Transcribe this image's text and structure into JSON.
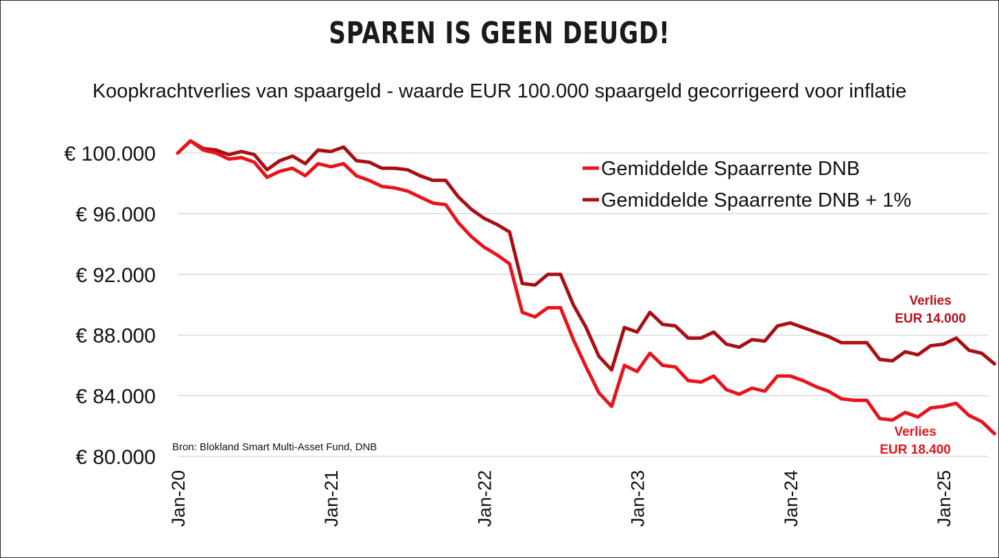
{
  "title": "SPAREN IS GEEN DEUGD!",
  "subtitle": "Koopkrachtverlies van spaargeld - waarde EUR 100.000 spaargeld gecorrigeerd voor inflatie",
  "source": "Bron: Blokland Smart Multi-Asset Fund, DNB",
  "chart_data": {
    "type": "line",
    "title": "SPAREN IS GEEN DEUGD!",
    "subtitle": "Koopkrachtverlies van spaargeld - waarde EUR 100.000 spaargeld gecorrigeerd voor inflatie",
    "xlabel": "",
    "ylabel": "",
    "ylim": [
      80000,
      100000
    ],
    "yticks": [
      80000,
      84000,
      88000,
      92000,
      96000,
      100000
    ],
    "ytick_labels": [
      "€ 80.000",
      "€ 84.000",
      "€ 88.000",
      "€ 92.000",
      "€ 96.000",
      "€ 100.000"
    ],
    "xtick_labels": [
      "Jan-20",
      "Jan-21",
      "Jan-22",
      "Jan-23",
      "Jan-24",
      "Jan-25"
    ],
    "x_start": "2020-01",
    "x_end": "2025-05",
    "grid": true,
    "legend_position": "top-right",
    "series": [
      {
        "name": "Gemiddelde Spaarrente DNB",
        "color": "#e8141b",
        "values": [
          100000,
          100800,
          100200,
          100000,
          99600,
          99700,
          99400,
          98400,
          98800,
          99000,
          98500,
          99300,
          99100,
          99300,
          98500,
          98200,
          97800,
          97700,
          97500,
          97100,
          96700,
          96600,
          95400,
          94500,
          93800,
          93300,
          92700,
          89500,
          89200,
          89800,
          89800,
          87700,
          85900,
          84200,
          83300,
          86000,
          85600,
          86800,
          86000,
          85900,
          85000,
          84900,
          85300,
          84400,
          84100,
          84500,
          84300,
          85300,
          85300,
          85000,
          84600,
          84300,
          83800,
          83700,
          83700,
          82500,
          82400,
          82900,
          82600,
          83200,
          83300,
          83500,
          82700,
          82300,
          81500
        ]
      },
      {
        "name": "Gemiddelde Spaarrente DNB + 1%",
        "color": "#a80f14",
        "values": [
          100000,
          100800,
          100300,
          100200,
          99900,
          100100,
          99900,
          98900,
          99500,
          99800,
          99300,
          100200,
          100100,
          100400,
          99500,
          99400,
          99000,
          99000,
          98900,
          98500,
          98200,
          98200,
          97100,
          96300,
          95700,
          95300,
          94800,
          91400,
          91300,
          92000,
          92000,
          90000,
          88500,
          86600,
          85700,
          88500,
          88200,
          89500,
          88700,
          88600,
          87800,
          87800,
          88200,
          87400,
          87200,
          87700,
          87600,
          88600,
          88800,
          88500,
          88200,
          87900,
          87500,
          87500,
          87500,
          86400,
          86300,
          86900,
          86700,
          87300,
          87400,
          87800,
          87000,
          86800,
          86100
        ]
      }
    ],
    "annotations": [
      {
        "line1": "Verlies",
        "line2": "EUR 14.000",
        "color": "#b3111a",
        "series": "Gemiddelde Spaarrente DNB + 1%"
      },
      {
        "line1": "Verlies",
        "line2": "EUR 18.400",
        "color": "#e8141b",
        "series": "Gemiddelde Spaarrente DNB"
      }
    ]
  }
}
